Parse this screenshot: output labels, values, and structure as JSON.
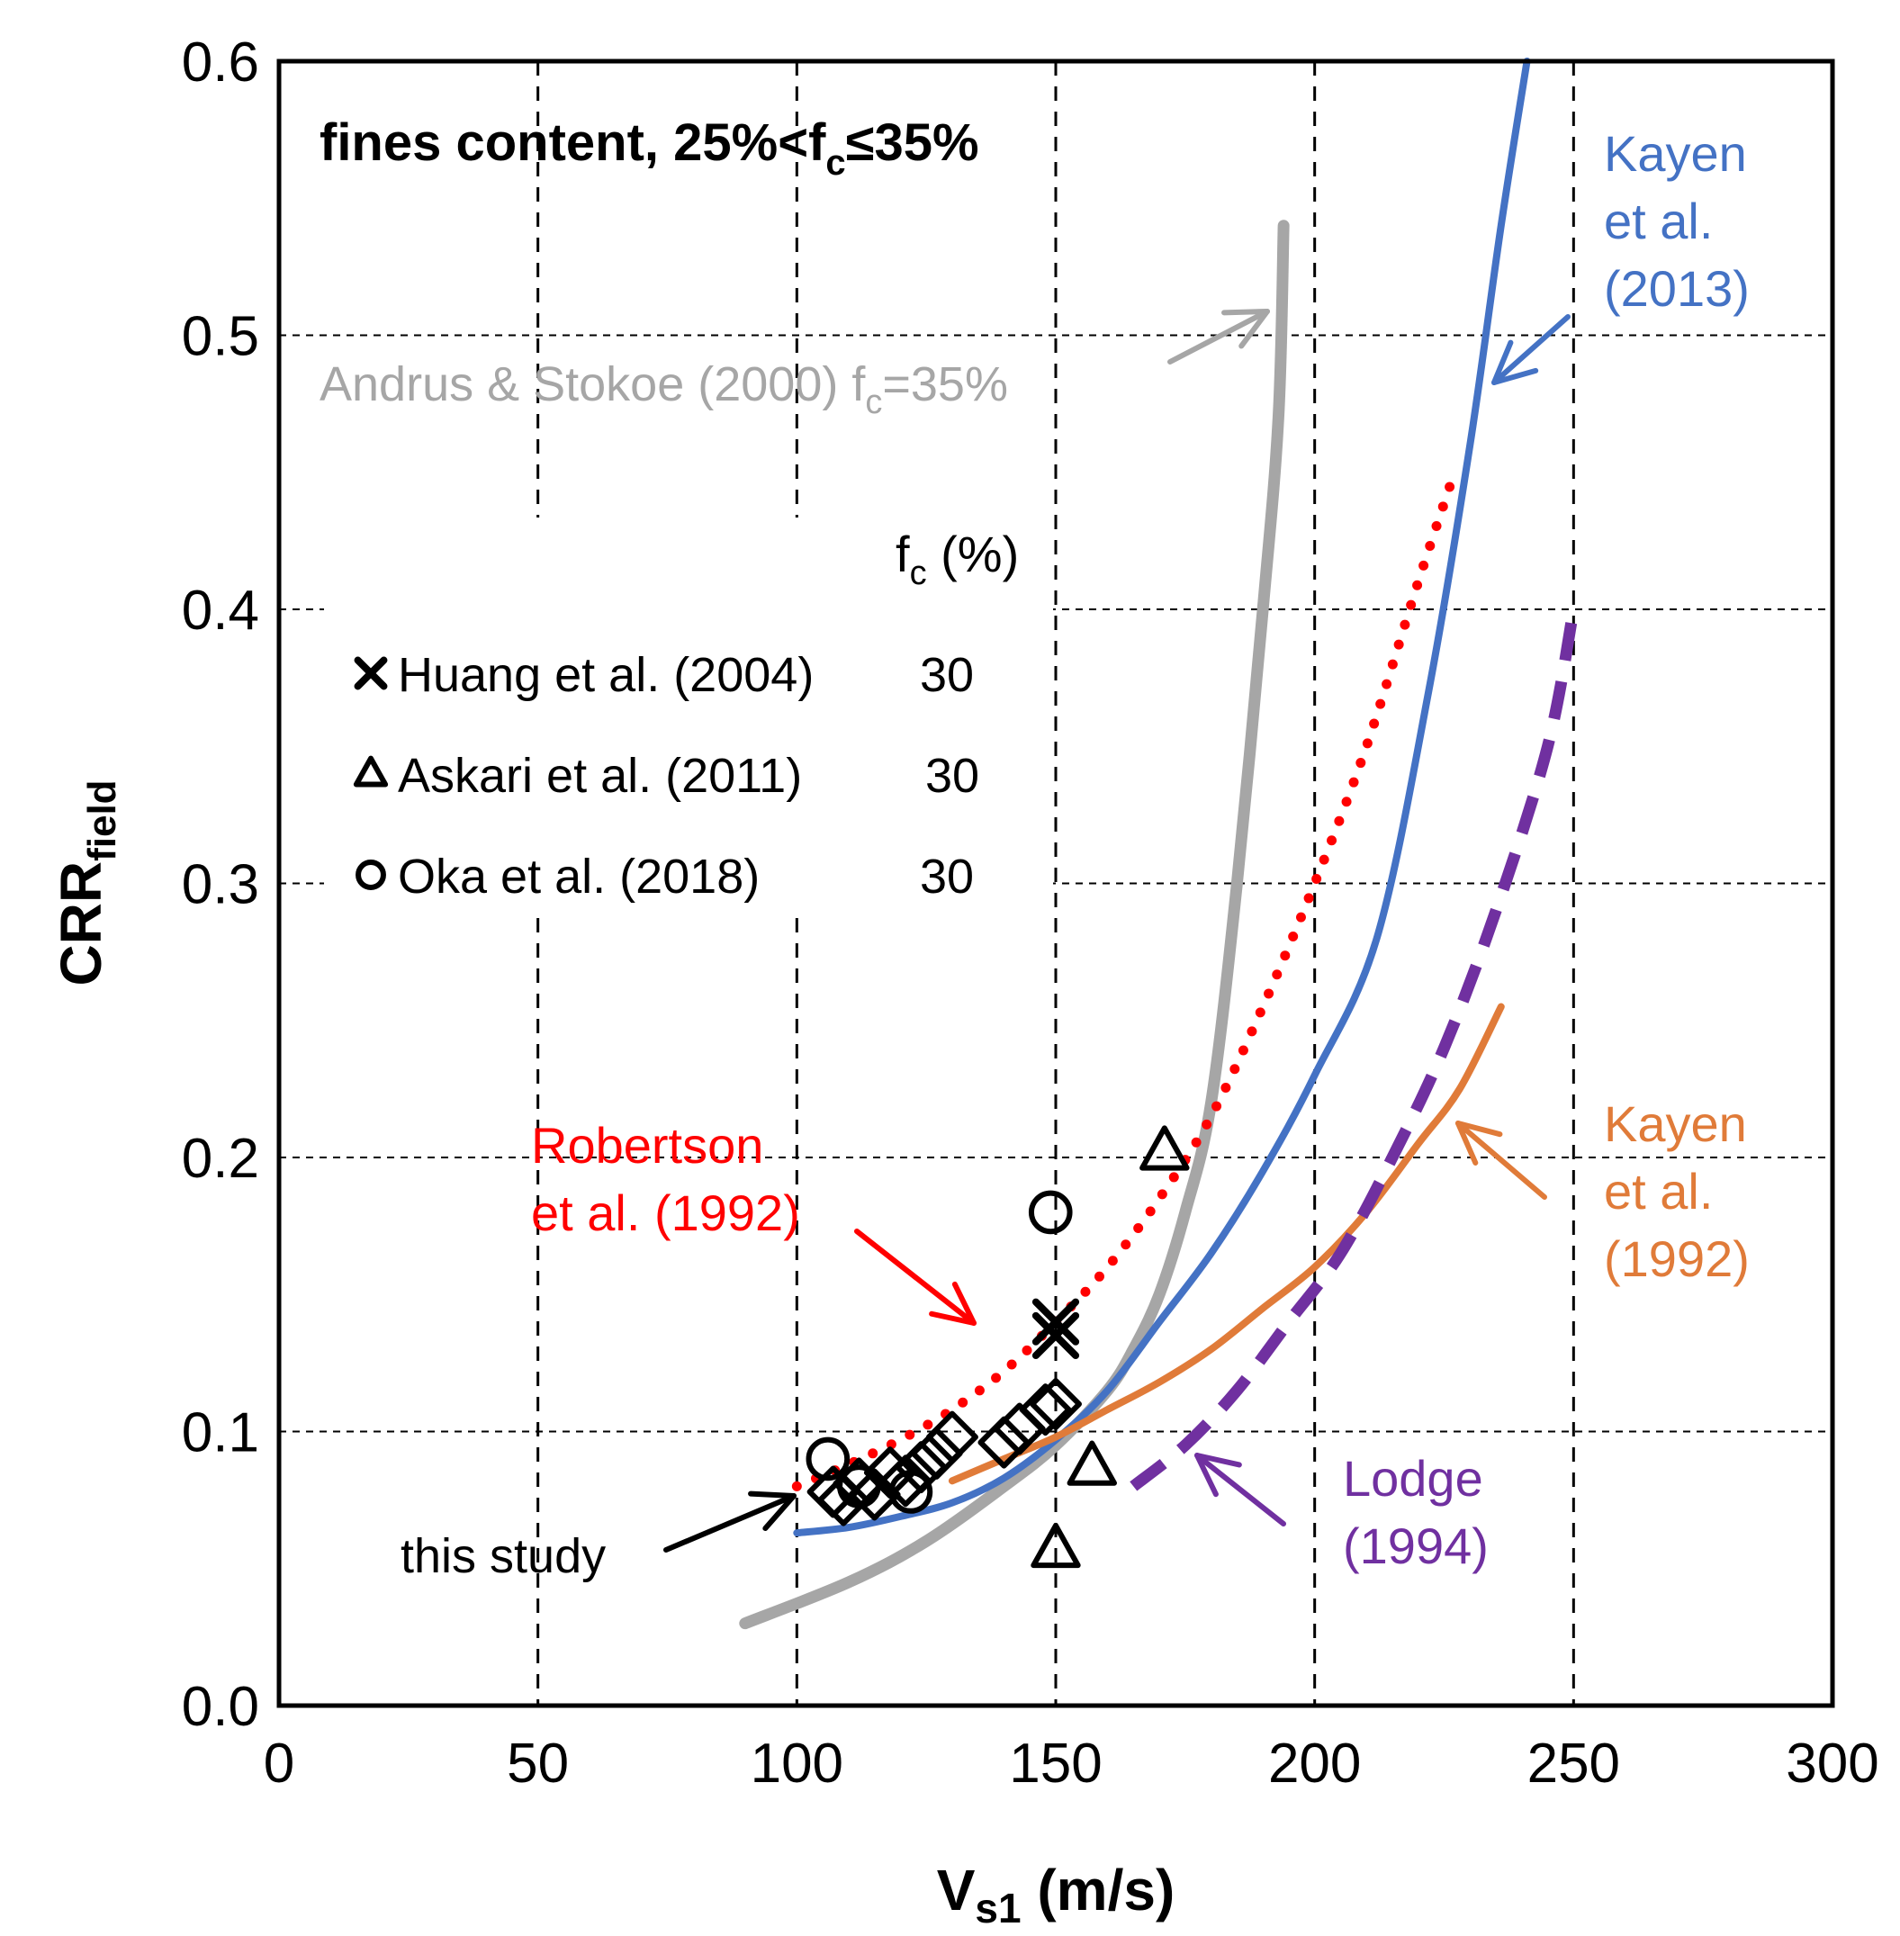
{
  "chart_data": {
    "type": "scatter",
    "title": "fines content, 25%<fc≤35%",
    "title_parts": {
      "prefix": "fines content, 25%<f",
      "sub": "c",
      "suffix": "≤35%"
    },
    "xlabel": "Vs1 (m/s)",
    "xlabel_parts": {
      "main": "V",
      "sub": "s1",
      "suffix": " (m/s)"
    },
    "ylabel": "CRRfield",
    "ylabel_parts": {
      "main": "CRR",
      "sub": "field"
    },
    "xlim": [
      0,
      300
    ],
    "ylim": [
      0,
      0.6
    ],
    "x_ticks": [
      0,
      50,
      100,
      150,
      200,
      250,
      300
    ],
    "y_ticks": [
      0.0,
      0.1,
      0.2,
      0.3,
      0.4,
      0.5,
      0.6
    ],
    "x_tick_labels": [
      "0",
      "50",
      "100",
      "150",
      "200",
      "250",
      "300"
    ],
    "y_tick_labels": [
      "0.0",
      "0.1",
      "0.2",
      "0.3",
      "0.4",
      "0.5",
      "0.6"
    ],
    "grid": "dashed",
    "colors": {
      "andrus": "#a6a6a6",
      "kayen2013": "#4472c4",
      "kayen1992": "#e07b39",
      "robertson": "#ff0000",
      "lodge": "#7030a0",
      "black": "#000000"
    },
    "series": [
      {
        "name": "Andrus & Stokoe (2000) fc=35%",
        "kind": "line",
        "style": "solid-thick",
        "color": "#a6a6a6",
        "x": [
          90,
          110,
          125,
          140,
          150,
          160,
          165,
          170,
          175,
          180,
          185,
          190,
          193,
          194
        ],
        "y": [
          0.03,
          0.045,
          0.06,
          0.08,
          0.095,
          0.115,
          0.13,
          0.15,
          0.18,
          0.22,
          0.3,
          0.4,
          0.47,
          0.54
        ]
      },
      {
        "name": "Kayen et al. (2013)",
        "kind": "line",
        "style": "solid",
        "color": "#4472c4",
        "x": [
          100,
          110,
          120,
          130,
          140,
          150,
          160,
          170,
          180,
          190,
          200,
          212,
          222,
          230,
          236,
          241
        ],
        "y": [
          0.063,
          0.065,
          0.069,
          0.074,
          0.083,
          0.097,
          0.115,
          0.14,
          0.165,
          0.195,
          0.23,
          0.28,
          0.37,
          0.46,
          0.54,
          0.6
        ]
      },
      {
        "name": "Kayen et al. (1992)",
        "kind": "line",
        "style": "solid",
        "color": "#e07b39",
        "x": [
          130,
          140,
          150,
          160,
          170,
          180,
          190,
          200,
          210,
          220,
          228,
          236
        ],
        "y": [
          0.082,
          0.09,
          0.098,
          0.108,
          0.118,
          0.13,
          0.145,
          0.16,
          0.18,
          0.205,
          0.225,
          0.255
        ]
      },
      {
        "name": "Robertson et al. (1992)",
        "kind": "line",
        "style": "dotted",
        "color": "#ff0000",
        "x": [
          100,
          110,
          120,
          130,
          140,
          150,
          160,
          170,
          180,
          190,
          200,
          210,
          220,
          227
        ],
        "y": [
          0.08,
          0.088,
          0.097,
          0.108,
          0.122,
          0.14,
          0.16,
          0.185,
          0.215,
          0.255,
          0.3,
          0.35,
          0.41,
          0.45
        ]
      },
      {
        "name": "Lodge (1994)",
        "kind": "line",
        "style": "dashed-thick",
        "color": "#7030a0",
        "x": [
          165,
          175,
          185,
          195,
          205,
          215,
          225,
          235,
          245,
          250
        ],
        "y": [
          0.08,
          0.095,
          0.115,
          0.14,
          0.165,
          0.2,
          0.24,
          0.29,
          0.35,
          0.4
        ]
      },
      {
        "name": "this study",
        "kind": "scatter",
        "marker": "diamond",
        "color": "#000000",
        "x": [
          107,
          109,
          112,
          115,
          118,
          121,
          124,
          127,
          130,
          140,
          143,
          148,
          150
        ],
        "y": [
          0.078,
          0.075,
          0.081,
          0.077,
          0.085,
          0.082,
          0.087,
          0.092,
          0.098,
          0.096,
          0.101,
          0.108,
          0.11
        ]
      },
      {
        "name": "Huang et al. (2004)",
        "kind": "scatter",
        "marker": "cross",
        "color": "#000000",
        "fc": "30",
        "x": [
          150,
          150
        ],
        "y": [
          0.14,
          0.135
        ]
      },
      {
        "name": "Askari et al. (2011)",
        "kind": "scatter",
        "marker": "triangle",
        "color": "#000000",
        "fc": "30",
        "x": [
          171,
          157,
          150
        ],
        "y": [
          0.202,
          0.087,
          0.057
        ]
      },
      {
        "name": "Oka et al. (2018)",
        "kind": "scatter",
        "marker": "circle",
        "color": "#000000",
        "fc": "30",
        "x": [
          149,
          106,
          112,
          122
        ],
        "y": [
          0.18,
          0.09,
          0.08,
          0.078
        ]
      }
    ],
    "legend": {
      "placement": "left-middle",
      "header": "fc (%)",
      "header_parts": {
        "main": "f",
        "sub": "c",
        "suffix": " (%)"
      },
      "entries": [
        {
          "marker": "cross",
          "label": "Huang et al. (2004)",
          "fc": "30"
        },
        {
          "marker": "triangle",
          "label": "Askari et al. (2011)",
          "fc": "30"
        },
        {
          "marker": "circle",
          "label": "Oka et al. (2018)",
          "fc": "30"
        }
      ]
    },
    "annotations": {
      "andrus": {
        "prefix": "Andrus  & Stokoe (2000) f",
        "sub": "c",
        "suffix": "=35%"
      },
      "kayen2013": [
        "Kayen",
        "et al.",
        "(2013)"
      ],
      "kayen1992": [
        "Kayen",
        "et al.",
        "(1992)"
      ],
      "robertson": [
        "Robertson",
        "et al. (1992)"
      ],
      "lodge": [
        "Lodge",
        "(1994)"
      ],
      "this_study": "this study"
    }
  }
}
